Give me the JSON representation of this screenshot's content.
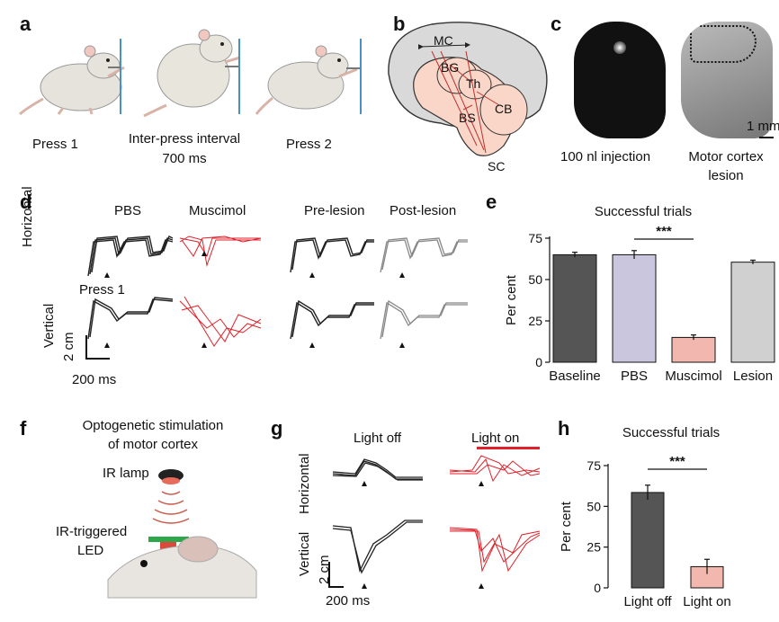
{
  "panels": {
    "a": "a",
    "b": "b",
    "c": "c",
    "d": "d",
    "e": "e",
    "f": "f",
    "g": "g",
    "h": "h"
  },
  "panel_a": {
    "press1": "Press 1",
    "interval_line1": "Inter-press interval",
    "interval_line2": "700 ms",
    "press2": "Press 2"
  },
  "panel_b": {
    "mc": "MC",
    "bg": "BG",
    "th": "Th",
    "bs": "BS",
    "cb": "CB",
    "sc": "SC"
  },
  "panel_c": {
    "scale": "1 mm",
    "injection": "100 nl injection",
    "lesion_line1": "Motor cortex",
    "lesion_line2": "lesion"
  },
  "panel_d": {
    "pbs": "PBS",
    "muscimol": "Muscimol",
    "pre_lesion": "Pre-lesion",
    "post_lesion": "Post-lesion",
    "horizontal": "Horizontal",
    "vertical": "Vertical",
    "press1": "Press 1",
    "scale_y": "2 cm",
    "scale_x": "200 ms"
  },
  "panel_f": {
    "title_line1": "Optogenetic stimulation",
    "title_line2": "of motor cortex",
    "ir_lamp": "IR lamp",
    "led_line1": "IR-triggered",
    "led_line2": "LED"
  },
  "panel_g": {
    "light_off": "Light off",
    "light_on": "Light on",
    "horizontal": "Horizontal",
    "vertical": "Vertical",
    "scale_y": "2 cm",
    "scale_x": "200 ms"
  },
  "colors": {
    "pbs": "#c9c6dd",
    "muscimol": "#f2b8b0",
    "baseline": "#555555",
    "lesion": "#d0d0d0",
    "red_trace": "#e0202a",
    "accent_blue": "#4a90c8",
    "brain_pink": "#f9d6c8"
  },
  "chart_data": [
    {
      "id": "e",
      "type": "bar",
      "title": "Successful trials",
      "ylabel": "Per cent",
      "xlabel": "",
      "ylim": [
        0,
        75
      ],
      "yticks": [
        0,
        25,
        50,
        75
      ],
      "categories": [
        "Baseline",
        "PBS",
        "Muscimol",
        "Lesion"
      ],
      "values": [
        65,
        65,
        15,
        60.5
      ],
      "errors": [
        1.5,
        2.5,
        1.5,
        1.2
      ],
      "colors": [
        "#555555",
        "#c9c6dd",
        "#f2b8b0",
        "#d0d0d0"
      ],
      "significance": {
        "from": 1,
        "to": 2,
        "label": "***"
      }
    },
    {
      "id": "h",
      "type": "bar",
      "title": "Successful trials",
      "ylabel": "Per cent",
      "xlabel": "",
      "ylim": [
        0,
        75
      ],
      "yticks": [
        0,
        25,
        50,
        75
      ],
      "categories": [
        "Light off",
        "Light on"
      ],
      "values": [
        58.5,
        13
      ],
      "errors": [
        4.5,
        4.5
      ],
      "colors": [
        "#555555",
        "#f2b8b0"
      ],
      "significance": {
        "from": 0,
        "to": 1,
        "label": "***"
      }
    }
  ]
}
